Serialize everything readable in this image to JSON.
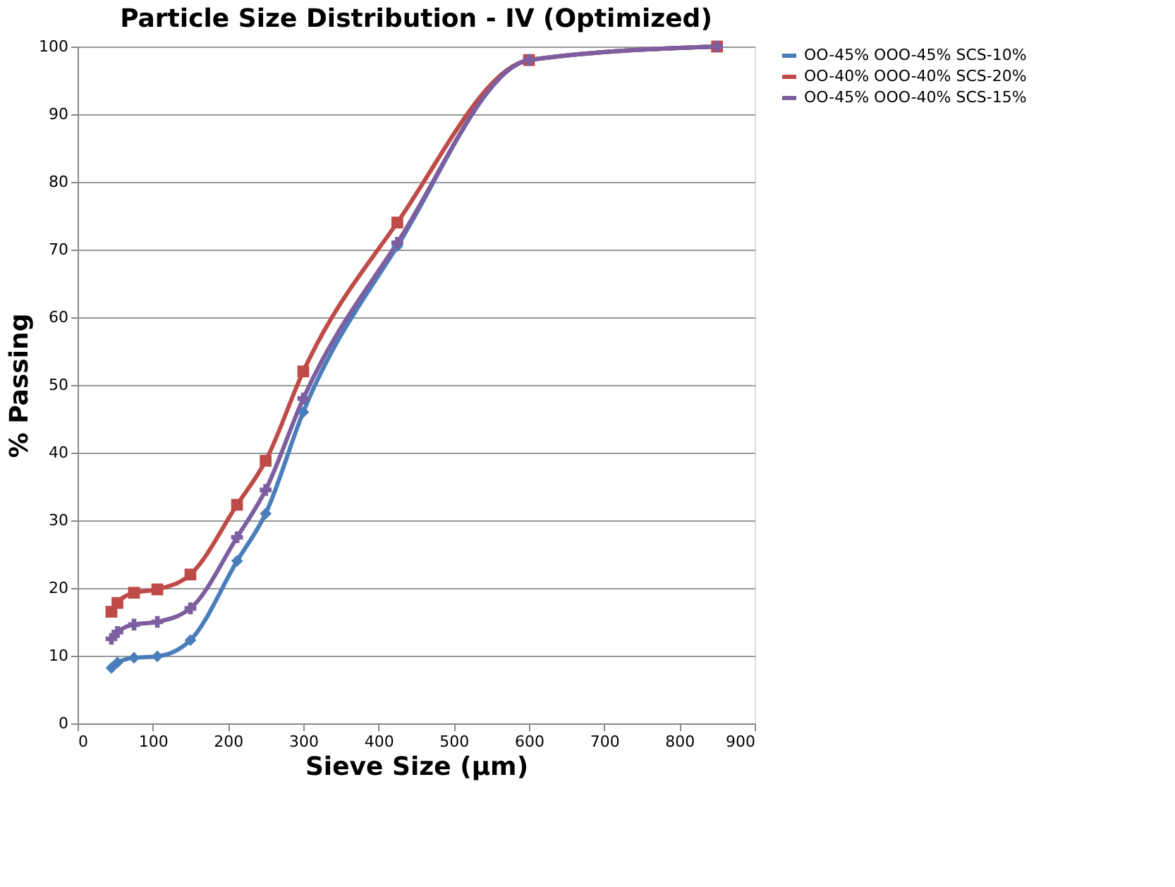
{
  "chart_data": {
    "type": "line",
    "title": "Particle Size Distribution - IV (Optimized)",
    "xlabel": "Sieve Size (µm)",
    "ylabel": "% Passing",
    "x": [
      45,
      53,
      75,
      106,
      150,
      212,
      250,
      300,
      425,
      600,
      850
    ],
    "series": [
      {
        "name": "OO-45% OOO-45% SCS-10%",
        "color": "#4a7ebb",
        "marker": "diamond",
        "values": [
          8.2,
          9,
          9.7,
          9.9,
          12.3,
          24,
          31,
          46,
          70.5,
          98,
          100
        ]
      },
      {
        "name": "OO-40% OOO-40% SCS-20%",
        "color": "#be4b48",
        "marker": "square",
        "values": [
          16.5,
          17.8,
          19.3,
          19.8,
          22,
          32.3,
          38.8,
          52,
          74,
          98,
          100
        ]
      },
      {
        "name": "OO-45% OOO-40% SCS-15%",
        "color": "#7d5fa0",
        "marker": "cross",
        "values": [
          12.5,
          13.5,
          14.6,
          15,
          17,
          27.5,
          34.5,
          48,
          71,
          98,
          100
        ]
      }
    ],
    "xlim": [
      0,
      900
    ],
    "xticks": [
      0,
      100,
      200,
      300,
      400,
      500,
      600,
      700,
      800,
      900
    ],
    "ylim": [
      0,
      100
    ],
    "yticks": [
      0,
      10,
      20,
      30,
      40,
      50,
      60,
      70,
      80,
      90,
      100
    ],
    "grid": "y",
    "legend": "right",
    "line_style": "solid"
  }
}
